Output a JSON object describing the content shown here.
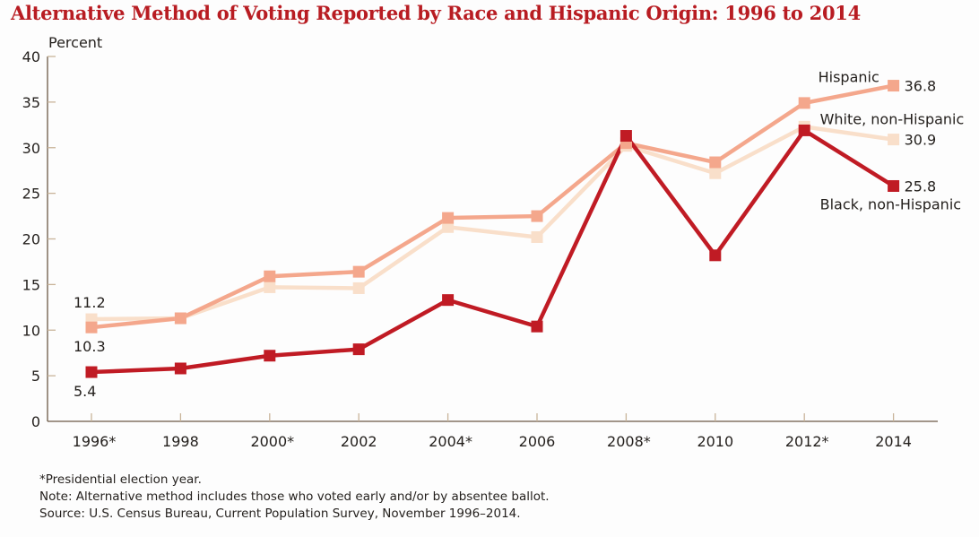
{
  "title": "Alternative Method of Voting Reported by Race and Hispanic Origin: 1996 to 2014",
  "notes": [
    "*Presidential election year.",
    "Note: Alternative method includes those who voted early and/or by absentee ballot.",
    "Source: U.S. Census Bureau, Current Population Survey, November 1996–2014."
  ],
  "chart_data": {
    "type": "line",
    "title": "Alternative Method of Voting Reported by Race and Hispanic Origin: 1996 to 2014",
    "xlabel": "",
    "ylabel": "Percent",
    "categories": [
      "1996*",
      "1998",
      "2000*",
      "2002",
      "2004*",
      "2006",
      "2008*",
      "2010",
      "2012*",
      "2014"
    ],
    "ylim": [
      0,
      40
    ],
    "yticks": [
      0,
      5,
      10,
      15,
      20,
      25,
      30,
      35,
      40
    ],
    "grid": false,
    "legend": "inline-right",
    "series": [
      {
        "name": "Hispanic",
        "color": "#f4a78c",
        "values": [
          10.3,
          11.3,
          15.9,
          16.4,
          22.3,
          22.5,
          30.5,
          28.4,
          34.9,
          36.8
        ],
        "labels": [
          {
            "index": 0,
            "text": "10.3",
            "position": "below"
          },
          {
            "index": 9,
            "text": "36.8",
            "position": "right"
          }
        ],
        "legend_label": {
          "text": "Hispanic",
          "position": "above-left"
        }
      },
      {
        "name": "White, non-Hispanic",
        "color": "#f9dfca",
        "values": [
          11.2,
          11.3,
          14.7,
          14.6,
          21.3,
          20.2,
          30.2,
          27.2,
          32.3,
          30.9
        ],
        "labels": [
          {
            "index": 0,
            "text": "11.2",
            "position": "above"
          },
          {
            "index": 9,
            "text": "30.9",
            "position": "right"
          }
        ],
        "legend_label": {
          "text": "White, non-Hispanic",
          "position": "above"
        }
      },
      {
        "name": "Black, non-Hispanic",
        "color": "#c01b24",
        "values": [
          5.4,
          5.8,
          7.2,
          7.9,
          13.3,
          10.4,
          31.3,
          18.2,
          31.9,
          25.8
        ],
        "labels": [
          {
            "index": 0,
            "text": "5.4",
            "position": "below"
          },
          {
            "index": 9,
            "text": "25.8",
            "position": "right"
          }
        ],
        "legend_label": {
          "text": "Black, non-Hispanic",
          "position": "below"
        }
      }
    ]
  },
  "colors": {
    "title": "#b81c22",
    "axis": "#6b5a45",
    "tick": "#c9b49a",
    "text": "#231f1c"
  }
}
